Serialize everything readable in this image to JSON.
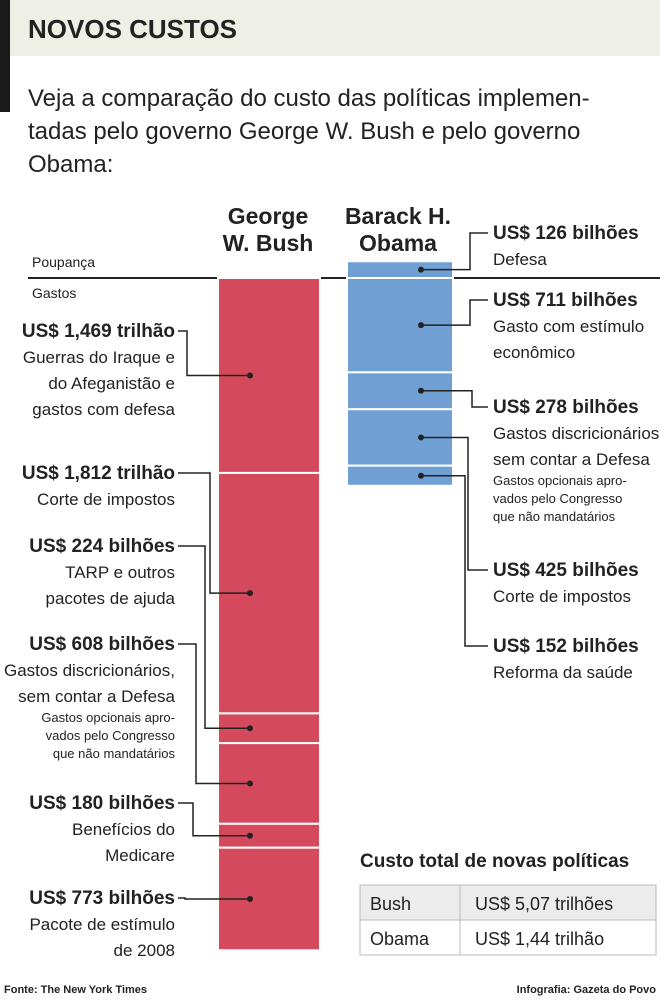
{
  "header": {
    "title": "NOVOS CUSTOS",
    "subtitle_lines": [
      "Veja a comparação do custo das políticas implemen-",
      "tadas pelo governo George W. Bush e pelo governo",
      "Obama:"
    ]
  },
  "chart_data": {
    "type": "stacked_bar",
    "savings_label": "Poupança",
    "spending_label": "Gastos",
    "series": [
      {
        "name_lines": [
          "George",
          "W. Bush"
        ],
        "color": "#d44a5c",
        "spending": [
          {
            "value": 1469,
            "value_label": "US$ 1,469 trilhão",
            "description": [
              "Guerras do Iraque e",
              "do Afeganistão e",
              "gastos com defesa"
            ]
          },
          {
            "value": 1812,
            "value_label": "US$ 1,812 trilhão",
            "description": [
              "Corte de impostos"
            ]
          },
          {
            "value": 224,
            "value_label": "US$ 224 bilhões",
            "description": [
              "TARP e outros",
              "pacotes de ajuda"
            ]
          },
          {
            "value": 608,
            "value_label": "US$ 608 bilhões",
            "description": [
              "Gastos discricionários,",
              "sem contar a Defesa"
            ],
            "note": [
              "Gastos opcionais apro-",
              "vados pelo Congresso",
              "que não mandatários"
            ]
          },
          {
            "value": 180,
            "value_label": "US$ 180 bilhões",
            "description": [
              "Benefícios do",
              "Medicare"
            ]
          },
          {
            "value": 773,
            "value_label": "US$ 773 bilhões",
            "description": [
              "Pacote de estímulo",
              "de 2008"
            ]
          }
        ]
      },
      {
        "name_lines": [
          "Barack H.",
          "Obama"
        ],
        "color": "#6f9fd3",
        "savings": [
          {
            "value": 126,
            "value_label": "US$ 126 bilhões",
            "description": [
              "Defesa"
            ]
          }
        ],
        "spending": [
          {
            "value": 711,
            "value_label": "US$ 711 bilhões",
            "description": [
              "Gasto com estímulo",
              "econômico"
            ]
          },
          {
            "value": 278,
            "value_label": "US$ 278 bilhões",
            "description": [
              "Gastos discricionários,",
              "sem contar a Defesa"
            ],
            "note": [
              "Gastos opcionais apro-",
              "vados pelo Congresso",
              "que não mandatários"
            ]
          },
          {
            "value": 425,
            "value_label": "US$ 425 bilhões",
            "description": [
              "Corte de impostos"
            ]
          },
          {
            "value": 152,
            "value_label": "US$ 152 bilhões",
            "description": [
              "Reforma da saúde"
            ]
          }
        ]
      }
    ]
  },
  "table": {
    "title": "Custo total de novas políticas",
    "rows": [
      [
        "Bush",
        "US$ 5,07 trilhões"
      ],
      [
        "Obama",
        "US$ 1,44 trilhão"
      ]
    ]
  },
  "footer": {
    "source": "Fonte: The New York Times",
    "credit": "Infografia: Gazeta do Povo"
  }
}
